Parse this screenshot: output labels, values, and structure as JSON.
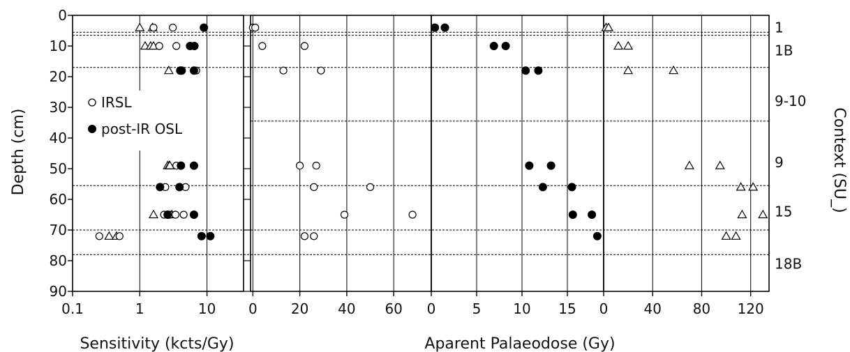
{
  "colors": {
    "ink": "#000000",
    "grid": "#000000",
    "background": "#ffffff"
  },
  "chart_data": {
    "type": "scatter",
    "y_axis": {
      "title": "Depth (cm)",
      "ylim": [
        0,
        90
      ],
      "inverted": true,
      "ticks": [
        0,
        10,
        20,
        30,
        40,
        50,
        60,
        70,
        80,
        90
      ]
    },
    "x_title_sensitivity": "Sensitivity (kcts/Gy)",
    "x_title_palaeodose": "Aparent Palaeodose (Gy)",
    "context_axis_title": "Context (SU_)",
    "legend": [
      {
        "label": "IRSL",
        "marker": "open-circle"
      },
      {
        "label": "post-IR OSL",
        "marker": "filled-circle"
      }
    ],
    "boundaries": [
      {
        "depth": 5.5,
        "extent": "full"
      },
      {
        "depth": 6.5,
        "extent": "full"
      },
      {
        "depth": 17,
        "extent": "full"
      },
      {
        "depth": 34.5,
        "extent": "panels-2-4"
      },
      {
        "depth": 55.5,
        "extent": "full"
      },
      {
        "depth": 70,
        "extent": "full"
      },
      {
        "depth": 78,
        "extent": "full"
      }
    ],
    "context_labels": [
      {
        "label": "1",
        "depth": 4
      },
      {
        "label": "1B",
        "depth": 11.5
      },
      {
        "label": "9-10",
        "depth": 28
      },
      {
        "label": "9",
        "depth": 48
      },
      {
        "label": "15",
        "depth": 64
      },
      {
        "label": "18B",
        "depth": 81
      }
    ],
    "panels": [
      {
        "id": "sensitivity",
        "scale": "log",
        "xlim": [
          0.1,
          35
        ],
        "ticks": [
          {
            "value": 0.1,
            "label": "0.1"
          },
          {
            "value": 1,
            "label": "1"
          },
          {
            "value": 10,
            "label": "10"
          }
        ],
        "gridlines": [
          1,
          10
        ],
        "series": [
          {
            "marker": "open-triangle",
            "points": [
              [
                1,
                4
              ],
              [
                1.55,
                4
              ],
              [
                1.2,
                10
              ],
              [
                1.45,
                10
              ],
              [
                1.6,
                10
              ],
              [
                2.7,
                18
              ],
              [
                2.6,
                49
              ],
              [
                2.75,
                49
              ],
              [
                2.8,
                49
              ],
              [
                1.6,
                65
              ],
              [
                3.0,
                65
              ],
              [
                0.35,
                72
              ],
              [
                0.45,
                72
              ]
            ]
          },
          {
            "marker": "open-circle",
            "points": [
              [
                1.6,
                4
              ],
              [
                3.1,
                4
              ],
              [
                1.95,
                10
              ],
              [
                3.5,
                10
              ],
              [
                4.0,
                18
              ],
              [
                6.9,
                18
              ],
              [
                3.5,
                49
              ],
              [
                2.4,
                56
              ],
              [
                4.8,
                56
              ],
              [
                2.3,
                65
              ],
              [
                2.8,
                65
              ],
              [
                3.4,
                65
              ],
              [
                4.5,
                65
              ],
              [
                0.25,
                72
              ],
              [
                0.5,
                72
              ]
            ]
          },
          {
            "marker": "filled-circle",
            "points": [
              [
                9.0,
                4
              ],
              [
                5.6,
                10
              ],
              [
                6.5,
                10
              ],
              [
                4.0,
                18
              ],
              [
                4.2,
                18
              ],
              [
                6.4,
                18
              ],
              [
                4.1,
                49
              ],
              [
                6.4,
                49
              ],
              [
                2.0,
                56
              ],
              [
                3.9,
                56
              ],
              [
                2.6,
                65
              ],
              [
                6.4,
                65
              ],
              [
                8.3,
                72
              ],
              [
                11.2,
                72
              ]
            ]
          }
        ]
      },
      {
        "id": "palaeodose-irsl",
        "scale": "linear",
        "xlim": [
          -1,
          76
        ],
        "ticks": [
          {
            "value": 0,
            "label": "0"
          },
          {
            "value": 20,
            "label": "20"
          },
          {
            "value": 40,
            "label": "40"
          },
          {
            "value": 60,
            "label": "60"
          }
        ],
        "gridlines": [
          0,
          20,
          40,
          60
        ],
        "series": [
          {
            "marker": "open-circle",
            "points": [
              [
                0,
                4
              ],
              [
                1,
                4
              ],
              [
                4,
                10
              ],
              [
                22,
                10
              ],
              [
                13,
                18
              ],
              [
                29,
                18
              ],
              [
                20,
                49
              ],
              [
                27,
                49
              ],
              [
                26,
                56
              ],
              [
                50,
                56
              ],
              [
                39,
                65
              ],
              [
                68,
                65
              ],
              [
                22,
                72
              ],
              [
                26,
                72
              ]
            ]
          }
        ]
      },
      {
        "id": "palaeodose-postir",
        "scale": "linear",
        "xlim": [
          0,
          19
        ],
        "ticks": [
          {
            "value": 0,
            "label": "0"
          },
          {
            "value": 5,
            "label": "5"
          },
          {
            "value": 10,
            "label": "10"
          },
          {
            "value": 15,
            "label": "15"
          }
        ],
        "gridlines": [
          0,
          5,
          10,
          15
        ],
        "series": [
          {
            "marker": "filled-circle",
            "points": [
              [
                0.4,
                4
              ],
              [
                1.5,
                4
              ],
              [
                6.9,
                10
              ],
              [
                8.2,
                10
              ],
              [
                10.4,
                18
              ],
              [
                11.8,
                18
              ],
              [
                10.8,
                49
              ],
              [
                13.2,
                49
              ],
              [
                12.3,
                56
              ],
              [
                15.5,
                56
              ],
              [
                15.6,
                65
              ],
              [
                17.7,
                65
              ],
              [
                18.3,
                72
              ]
            ]
          }
        ]
      },
      {
        "id": "palaeodose-triangles",
        "scale": "linear",
        "xlim": [
          0,
          135
        ],
        "ticks": [
          {
            "value": 0,
            "label": "0"
          },
          {
            "value": 40,
            "label": "40"
          },
          {
            "value": 80,
            "label": "80"
          },
          {
            "value": 120,
            "label": "120"
          }
        ],
        "gridlines": [
          0,
          40,
          80,
          120
        ],
        "series": [
          {
            "marker": "open-triangle",
            "points": [
              [
                2,
                4
              ],
              [
                4,
                4
              ],
              [
                12,
                10
              ],
              [
                20,
                10
              ],
              [
                20,
                18
              ],
              [
                57,
                18
              ],
              [
                70,
                49
              ],
              [
                95,
                49
              ],
              [
                112,
                56
              ],
              [
                122,
                56
              ],
              [
                113,
                65
              ],
              [
                130,
                65
              ],
              [
                100,
                72
              ],
              [
                108,
                72
              ]
            ]
          }
        ]
      }
    ]
  }
}
